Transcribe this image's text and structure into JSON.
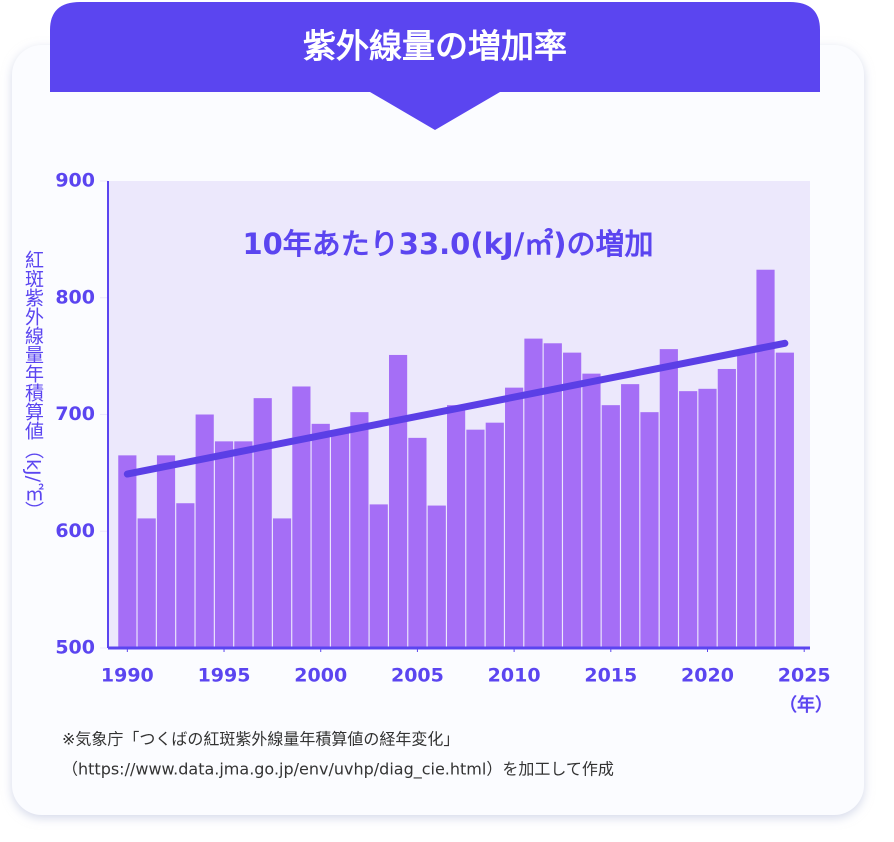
{
  "chart_data": {
    "type": "bar",
    "title": "紫外線量の増加率",
    "annotation": "10年あたり33.0(kJ/㎡)の増加",
    "y_label": "紅斑紫外線量年積算値（kJ/㎡）",
    "x_unit": "（年）",
    "source_lines": [
      "※気象庁「つくばの紅斑紫外線量年積算値の経年変化」",
      "（https://www.data.jma.go.jp/env/uvhp/diag_cie.html）を加工して作成"
    ],
    "x": [
      1990,
      1991,
      1992,
      1993,
      1994,
      1995,
      1996,
      1997,
      1998,
      1999,
      2000,
      2001,
      2002,
      2003,
      2004,
      2005,
      2006,
      2007,
      2008,
      2009,
      2010,
      2011,
      2012,
      2013,
      2014,
      2015,
      2016,
      2017,
      2018,
      2019,
      2020,
      2021,
      2022,
      2023,
      2024
    ],
    "values": [
      665,
      611,
      665,
      624,
      700,
      677,
      677,
      714,
      611,
      724,
      692,
      684,
      702,
      623,
      751,
      680,
      622,
      708,
      687,
      693,
      723,
      765,
      761,
      753,
      735,
      708,
      726,
      702,
      756,
      720,
      722,
      739,
      753,
      824,
      753
    ],
    "color": "#a56ef6",
    "trend": {
      "x": [
        1990,
        2024
      ],
      "values": [
        649,
        761
      ],
      "color": "#5b3fe6"
    },
    "xlim": [
      1989,
      2025.3
    ],
    "xticks": [
      1990,
      1995,
      2000,
      2005,
      2010,
      2015,
      2020,
      2025
    ],
    "ylim": [
      500,
      900
    ],
    "yticks": [
      500,
      600,
      700,
      800,
      900
    ]
  }
}
